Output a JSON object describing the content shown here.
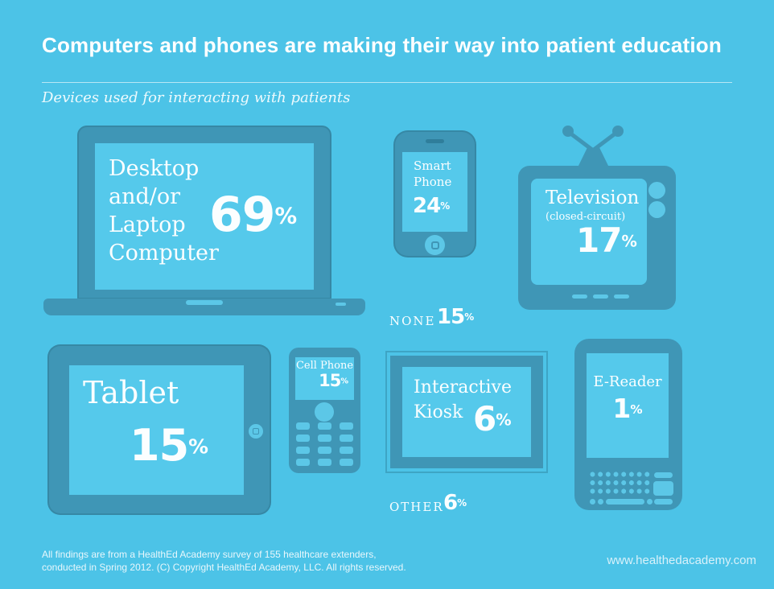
{
  "header": {
    "title": "Computers and phones are making their way into patient education",
    "subtitle": "Devices used for interacting with patients"
  },
  "percent_sign": "%",
  "devices": {
    "laptop": {
      "lines": [
        "Desktop",
        "and/or",
        "Laptop",
        "Computer"
      ],
      "value": "69"
    },
    "smartphone": {
      "lines": [
        "Smart",
        "Phone"
      ],
      "value": "24"
    },
    "television": {
      "label": "Television",
      "sublabel": "(closed-circuit)",
      "value": "17"
    },
    "tablet": {
      "label": "Tablet",
      "value": "15"
    },
    "cellphone": {
      "label": "Cell Phone",
      "value": "15"
    },
    "kiosk": {
      "lines": [
        "Interactive",
        "Kiosk"
      ],
      "value": "6"
    },
    "ereader": {
      "label": "E-Reader",
      "value": "1"
    }
  },
  "stats": {
    "none": {
      "label": "NONE",
      "value": "15"
    },
    "other": {
      "label": "OTHER",
      "value": "6"
    }
  },
  "footer": {
    "line1": "All findings are from a HealthEd Academy survey of 155 healthcare extenders,",
    "line2": "conducted in Spring 2012.  (C) Copyright HealthEd Academy, LLC. All rights reserved.",
    "website": "www.healthedacademy.com"
  },
  "colors": {
    "background": "#4CC3E7",
    "device_body": "#3F96B6",
    "device_screen": "#55C9EB",
    "accent_light": "#5CC7E7",
    "detail_dark": "#2F7E9B",
    "text_white": "#FBFEFF"
  },
  "chart_data": {
    "type": "pictogram",
    "title": "Computers and phones are making their way into patient education",
    "subtitle": "Devices used for interacting with patients",
    "categories": [
      "Desktop and/or Laptop Computer",
      "Smart Phone",
      "Television (closed-circuit)",
      "None",
      "Tablet",
      "Cell Phone",
      "Interactive Kiosk",
      "E-Reader",
      "Other"
    ],
    "values": [
      69,
      24,
      17,
      15,
      15,
      15,
      6,
      1,
      6
    ],
    "unit": "%",
    "source": "HealthEd Academy survey of 155 healthcare extenders, Spring 2012"
  }
}
